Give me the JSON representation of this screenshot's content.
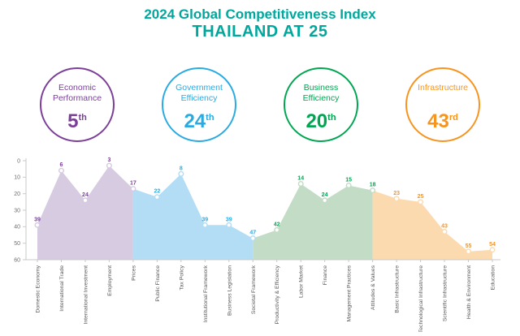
{
  "header": {
    "title": "2024 Global Competitiveness Index",
    "subtitle": "THAILAND AT 25",
    "color": "#00A79D"
  },
  "circles": [
    {
      "label": "Economic Performance",
      "rank": "5",
      "suffix": "th",
      "color": "#7B3F98"
    },
    {
      "label": "Government Efficiency",
      "rank": "24",
      "suffix": "th",
      "color": "#29ABE2"
    },
    {
      "label": "Business Efficiency",
      "rank": "20",
      "suffix": "th",
      "color": "#00A651"
    },
    {
      "label": "Infrastructure",
      "rank": "43",
      "suffix": "rd",
      "color": "#F7941E"
    }
  ],
  "chart_data": {
    "type": "area",
    "title": "2024 Global Competitiveness Index",
    "subtitle": "THAILAND AT 25",
    "y_inverted": true,
    "ylim": [
      0,
      60
    ],
    "yticks": [
      0,
      10,
      20,
      30,
      40,
      50,
      60
    ],
    "grid": false,
    "legend": "none",
    "categories": [
      "Domestic Economy",
      "International Trade",
      "International Investment",
      "Employment",
      "Prices",
      "Public Finance",
      "Tax Policy",
      "Institutional Framework",
      "Business Legislation",
      "Societal Framework",
      "Productivity & Efficiency",
      "Labor Market",
      "Finance",
      "Management Practices",
      "Attitudes & Values",
      "Basic Infrastructure",
      "Technological Infrastructure",
      "Scientific Infrastructure",
      "Health & Environment",
      "Education"
    ],
    "values": [
      39,
      6,
      24,
      3,
      17,
      22,
      8,
      39,
      39,
      47,
      42,
      14,
      24,
      15,
      18,
      23,
      25,
      43,
      55,
      54
    ],
    "sections": [
      {
        "name": "Economic Performance",
        "start": 0,
        "end": 4,
        "color": "#7B3F98",
        "fill": "#D7CBE2"
      },
      {
        "name": "Government Efficiency",
        "start": 5,
        "end": 9,
        "color": "#29ABE2",
        "fill": "#B2DDF5"
      },
      {
        "name": "Business Efficiency",
        "start": 10,
        "end": 14,
        "color": "#00A651",
        "fill": "#C2DCC6"
      },
      {
        "name": "Infrastructure",
        "start": 15,
        "end": 19,
        "color": "#F7941E",
        "fill": "#FCDAB0"
      }
    ],
    "axis_color": "#C9C9C9",
    "tick_label_color": "#6E6E6E",
    "category_label_color": "#595959"
  }
}
